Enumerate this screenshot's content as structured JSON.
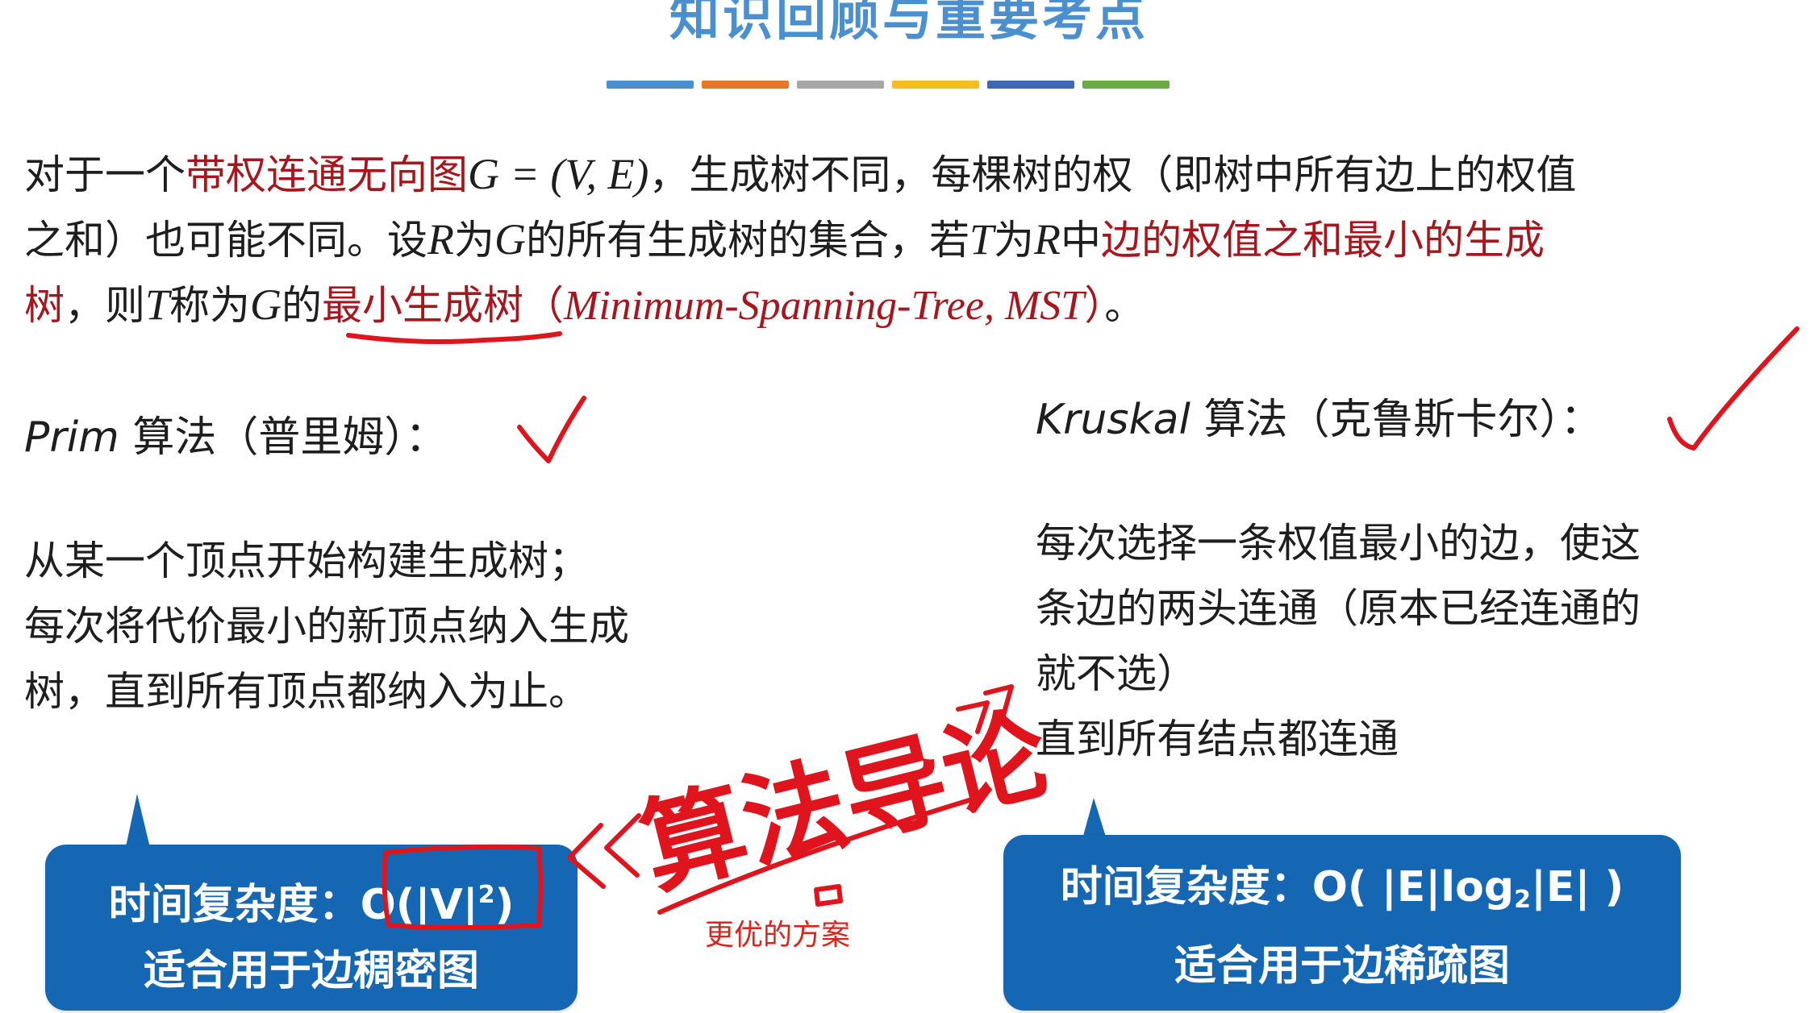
{
  "title": "知识回顾与重要考点",
  "title_bar_colors": [
    "#4a8fd0",
    "#e9772b",
    "#a6a6a6",
    "#f2bf1f",
    "#3e68b5",
    "#6aab44"
  ],
  "intro": {
    "l1_a": "对于一个",
    "l1_b": "带权连通无向图",
    "l1_c": "G = (V, E)",
    "l1_d": "，生成树不同，每棵树的权（即树中所有边上的权值",
    "l2_a": "之和）也可能不同。设",
    "l2_b": "R",
    "l2_c": "为",
    "l2_d": "G",
    "l2_e": "的所有生成树的集合，若",
    "l2_f": "T",
    "l2_g": "为",
    "l2_h": "R",
    "l2_i": "中",
    "l2_j": "边的权值之和最小的生成",
    "l3_a": "树",
    "l3_b": "，则",
    "l3_c": "T",
    "l3_d": "称为",
    "l3_e": "G",
    "l3_f": "的",
    "l3_g": "最小生成树",
    "l3_h": "（",
    "l3_i": "Minimum-Spanning-Tree, MST",
    "l3_j": "）",
    "l3_k": "。"
  },
  "prim": {
    "name": "Prim",
    "label": "算法（普里姆）：",
    "desc": [
      "从某一个顶点开始构建生成树；",
      "每次将代价最小的新顶点纳入生成",
      "树，直到所有顶点都纳入为止。"
    ],
    "box_line1_a": "时间复杂度：",
    "box_line1_b": "O(|V|",
    "box_line1_sup": "2",
    "box_line1_c": ")",
    "box_line2": "适合用于边稠密图"
  },
  "kruskal": {
    "name": "Kruskal",
    "label": "算法（克鲁斯卡尔）：",
    "desc": [
      "每次选择一条权值最小的边，使这",
      "条边的两头连通（原本已经连通的",
      "就不选）",
      "直到所有结点都连通"
    ],
    "box_line1_a": "时间复杂度：",
    "box_line1_b": "O( |E|log",
    "box_line1_sub": "2",
    "box_line1_c": "|E| )",
    "box_line2": "适合用于边稀疏图"
  },
  "annotation": {
    "handwriting": "算法导论",
    "note": "更优的方案"
  },
  "colors": {
    "highlight_red": "#a8161d",
    "ink_red": "#e0141c",
    "callout_blue": "#1567b4",
    "title_blue": "#4a8fd0"
  }
}
